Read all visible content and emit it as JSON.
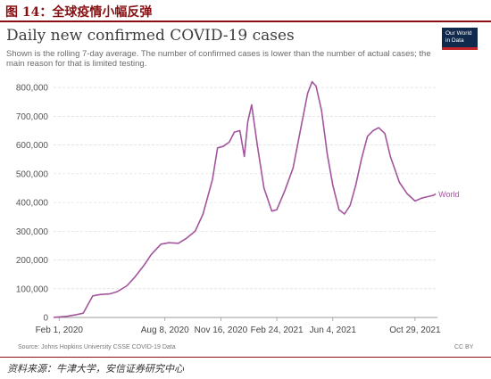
{
  "header": {
    "figure_title": "图 14：全球疫情小幅反弹"
  },
  "logo": {
    "line1": "Our World",
    "line2": "in Data"
  },
  "chart_data": {
    "type": "line",
    "title": "Daily new confirmed COVID-19 cases",
    "subtitle": "Shown is the rolling 7-day average. The number of confirmed cases is lower than the number of actual cases; the main reason for that is limited testing.",
    "xlabel": "",
    "ylabel": "",
    "ylim": [
      0,
      850000
    ],
    "yticks": [
      0,
      100000,
      200000,
      300000,
      400000,
      500000,
      600000,
      700000,
      800000
    ],
    "ytick_labels": [
      "0",
      "100,000",
      "200,000",
      "300,000",
      "400,000",
      "500,000",
      "600,000",
      "700,000",
      "800,000"
    ],
    "xlim": [
      "2020-01-22",
      "2021-12-08"
    ],
    "xticks": [
      "2020-02-01",
      "2020-08-08",
      "2020-11-16",
      "2021-02-24",
      "2021-06-04",
      "2021-10-29"
    ],
    "xtick_labels": [
      "Feb 1, 2020",
      "Aug 8, 2020",
      "Nov 16, 2020",
      "Feb 24, 2021",
      "Jun 4, 2021",
      "Oct 29, 2021"
    ],
    "grid": true,
    "line_color": "#a2559c",
    "series": [
      {
        "name": "World",
        "x": [
          "2020-01-22",
          "2020-02-01",
          "2020-02-15",
          "2020-03-01",
          "2020-03-15",
          "2020-04-01",
          "2020-04-15",
          "2020-05-01",
          "2020-05-15",
          "2020-06-01",
          "2020-06-15",
          "2020-07-01",
          "2020-07-15",
          "2020-08-01",
          "2020-08-15",
          "2020-09-01",
          "2020-09-15",
          "2020-10-01",
          "2020-10-15",
          "2020-11-01",
          "2020-11-10",
          "2020-11-20",
          "2020-12-01",
          "2020-12-10",
          "2020-12-20",
          "2020-12-28",
          "2021-01-03",
          "2021-01-10",
          "2021-01-20",
          "2021-02-01",
          "2021-02-15",
          "2021-02-24",
          "2021-03-10",
          "2021-03-25",
          "2021-04-10",
          "2021-04-20",
          "2021-04-28",
          "2021-05-05",
          "2021-05-15",
          "2021-05-25",
          "2021-06-04",
          "2021-06-15",
          "2021-06-25",
          "2021-07-05",
          "2021-07-15",
          "2021-07-25",
          "2021-08-05",
          "2021-08-15",
          "2021-08-25",
          "2021-09-05",
          "2021-09-15",
          "2021-10-01",
          "2021-10-15",
          "2021-10-29",
          "2021-11-10",
          "2021-11-20",
          "2021-12-01",
          "2021-12-05"
        ],
        "y": [
          500,
          2000,
          4000,
          9000,
          15000,
          75000,
          80000,
          82000,
          90000,
          110000,
          140000,
          180000,
          220000,
          255000,
          260000,
          258000,
          275000,
          300000,
          360000,
          480000,
          590000,
          595000,
          610000,
          645000,
          650000,
          560000,
          680000,
          740000,
          600000,
          450000,
          370000,
          375000,
          440000,
          520000,
          680000,
          780000,
          820000,
          805000,
          720000,
          570000,
          460000,
          375000,
          360000,
          390000,
          460000,
          550000,
          630000,
          650000,
          660000,
          640000,
          560000,
          470000,
          430000,
          405000,
          415000,
          420000,
          425000,
          430000
        ]
      }
    ],
    "annotations": [
      "World"
    ]
  },
  "source": "Source: Johns Hopkins University CSSE COVID-19 Data",
  "license": "CC BY",
  "credit": "资料来源：牛津大学，安信证券研究中心"
}
